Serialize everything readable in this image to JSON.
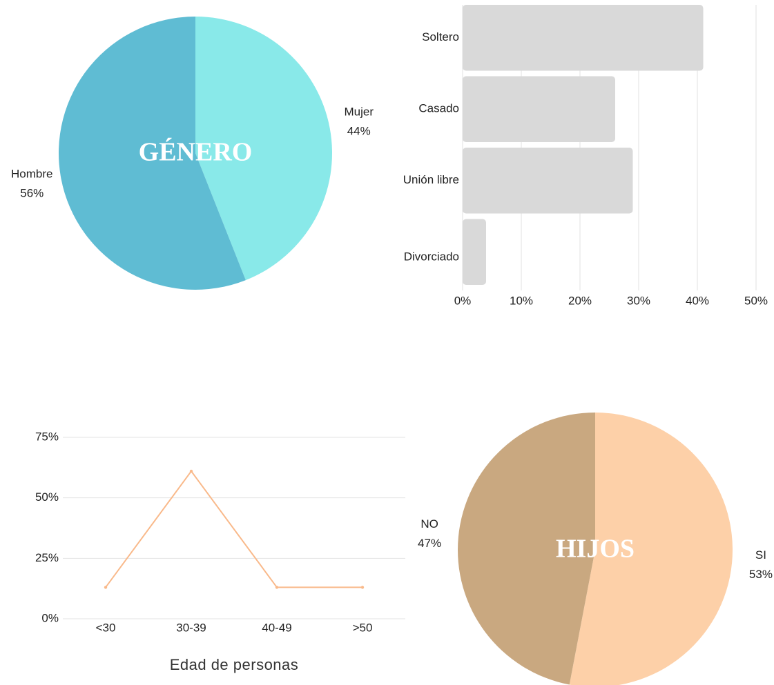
{
  "chart_data": [
    {
      "type": "pie",
      "title": "GÉNERO",
      "categories": [
        "Mujer",
        "Hombre"
      ],
      "values": [
        44,
        56
      ],
      "value_labels": [
        "44%",
        "56%"
      ],
      "colors": [
        "#89e9e9",
        "#5fbcd3"
      ]
    },
    {
      "type": "hbar",
      "categories": [
        "Soltero",
        "Casado",
        "Unión libre",
        "Divorciado"
      ],
      "values": [
        41,
        26,
        29,
        4
      ],
      "color": "#d9d9d9",
      "xlim": [
        0,
        50
      ],
      "xticks": [
        {
          "value": 0,
          "label": "0%"
        },
        {
          "value": 10,
          "label": "10%"
        },
        {
          "value": 20,
          "label": "20%"
        },
        {
          "value": 30,
          "label": "30%"
        },
        {
          "value": 40,
          "label": "40%"
        },
        {
          "value": 50,
          "label": "50%"
        }
      ],
      "grid": true
    },
    {
      "type": "line",
      "x_label": "Edad de personas",
      "categories": [
        "<30",
        "30-39",
        "40-49",
        ">50"
      ],
      "values": [
        13,
        61,
        13,
        13
      ],
      "color": "#f9b98a",
      "ylim": [
        0,
        75
      ],
      "yticks": [
        {
          "value": 0,
          "label": "0%"
        },
        {
          "value": 25,
          "label": "25%"
        },
        {
          "value": 50,
          "label": "50%"
        },
        {
          "value": 75,
          "label": "75%"
        }
      ],
      "grid": true
    },
    {
      "type": "pie",
      "title": "HIJOS",
      "categories": [
        "SI",
        "NO"
      ],
      "values": [
        53,
        47
      ],
      "value_labels": [
        "53%",
        "47%"
      ],
      "colors": [
        "#fdd0a8",
        "#c9a880"
      ]
    }
  ]
}
